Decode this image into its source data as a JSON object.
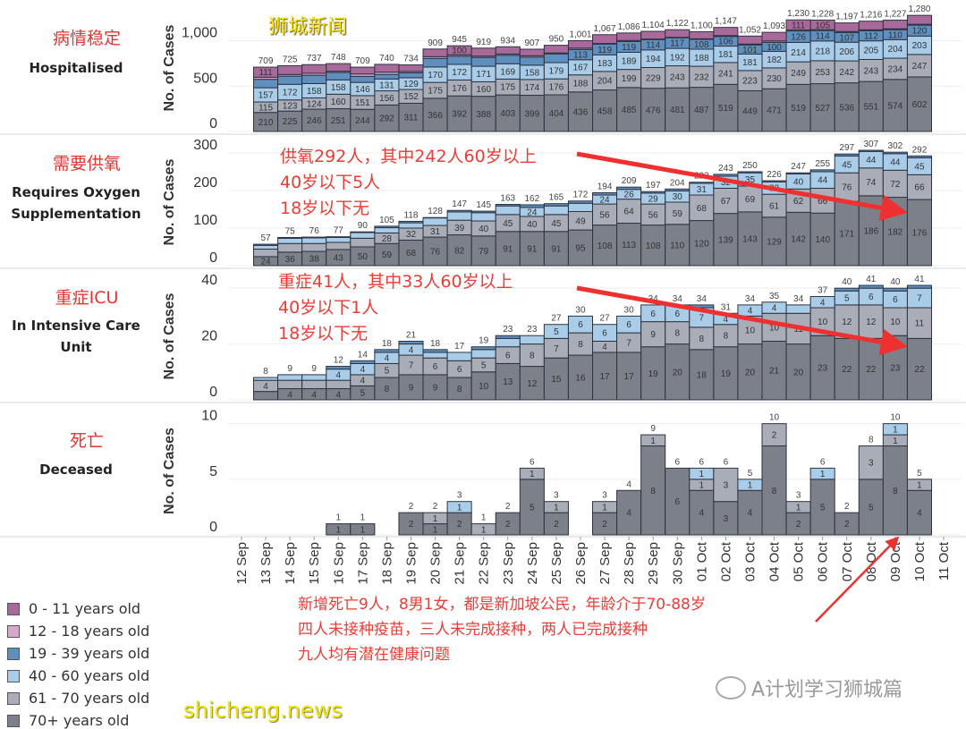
{
  "panels": [
    {
      "title_cn": "病情稳定",
      "title_en": "Hospitalised"
    },
    {
      "title_cn": "需要供氧",
      "title_en": "Requires Oxygen Supplementation"
    },
    {
      "title_cn": "重症ICU",
      "title_en": "In Intensive Care Unit"
    },
    {
      "title_cn": "死亡",
      "title_en": "Deceased"
    }
  ],
  "annotations": {
    "oxygen": [
      "供氧292人，其中242人60岁以上",
      "40岁以下5人",
      "18岁以下无"
    ],
    "icu": [
      "重症41人，其中33人60岁以上",
      "40岁以下1人",
      "18岁以下无"
    ],
    "deceased": [
      "新增死亡9人，8男1女，都是新加坡公民，年龄介于70-88岁",
      "四人未接种疫苗，三人未完成接种，两人已完成接种",
      "九人均有潜在健康问题"
    ]
  },
  "legend": [
    {
      "label": "0 - 11 years old",
      "color": "#a86a9a"
    },
    {
      "label": "12 - 18 years old",
      "color": "#d9a7cc"
    },
    {
      "label": "19 - 39 years old",
      "color": "#5f8fbf"
    },
    {
      "label": "40 - 60 years old",
      "color": "#a9cde9"
    },
    {
      "label": "61 - 70 years old",
      "color": "#a9adb8"
    },
    {
      "label": "70+ years old",
      "color": "#7b8089"
    }
  ],
  "watermarks": {
    "top": "狮城新闻",
    "bottom": "shicheng.news",
    "wechat": "A计划学习狮城篇"
  },
  "chart_data": [
    {
      "type": "bar",
      "stacked": true,
      "ylabel": "No. of Cases",
      "yticks": [
        0,
        500,
        1000
      ],
      "ylim": [
        0,
        1400
      ],
      "categories": [
        "12 Sep",
        "13 Sep",
        "14 Sep",
        "15 Sep",
        "16 Sep",
        "17 Sep",
        "18 Sep",
        "19 Sep",
        "20 Sep",
        "21 Sep",
        "22 Sep",
        "23 Sep",
        "24 Sep",
        "25 Sep",
        "26 Sep",
        "27 Sep",
        "28 Sep",
        "29 Sep",
        "30 Sep",
        "01 Oct",
        "02 Oct",
        "03 Oct",
        "04 Oct",
        "05 Oct",
        "06 Oct",
        "07 Oct",
        "08 Oct",
        "09 Oct",
        "10 Oct",
        "11 Oct"
      ],
      "totals": [
        null,
        709,
        725,
        737,
        748,
        709,
        740,
        734,
        909,
        945,
        919,
        934,
        907,
        950,
        1001,
        1067,
        1086,
        1104,
        1122,
        1100,
        1147,
        1052,
        1093,
        1230,
        1228,
        1197,
        1216,
        1227,
        1280,
        null
      ],
      "series": [
        {
          "name": "70+ years old",
          "values": [
            null,
            210,
            225,
            246,
            251,
            244,
            292,
            311,
            366,
            392,
            388,
            403,
            399,
            404,
            436,
            458,
            485,
            476,
            481,
            487,
            519,
            449,
            471,
            519,
            527,
            536,
            551,
            574,
            602,
            null
          ]
        },
        {
          "name": "61 - 70 years old",
          "values": [
            null,
            115,
            123,
            124,
            160,
            151,
            156,
            152,
            175,
            176,
            160,
            175,
            174,
            176,
            188,
            204,
            199,
            229,
            243,
            232,
            241,
            223,
            230,
            249,
            253,
            242,
            243,
            234,
            247,
            null
          ]
        },
        {
          "name": "40 - 60 years old",
          "values": [
            null,
            157,
            172,
            158,
            158,
            146,
            131,
            129,
            170,
            172,
            171,
            169,
            158,
            179,
            167,
            183,
            189,
            194,
            192,
            188,
            181,
            181,
            182,
            214,
            218,
            206,
            205,
            204,
            203,
            null
          ]
        },
        {
          "name": "19 - 39 years old",
          "values": [
            null,
            93,
            90,
            92,
            82,
            67,
            50,
            55,
            95,
            89,
            98,
            93,
            89,
            97,
            113,
            119,
            119,
            114,
            117,
            108,
            106,
            101,
            100,
            126,
            114,
            107,
            112,
            110,
            120,
            null
          ]
        },
        {
          "name": "12 - 18 years old",
          "values": [
            null,
            23,
            18,
            22,
            13,
            26,
            25,
            15,
            19,
            16,
            14,
            14,
            15,
            9,
            15,
            6,
            11,
            6,
            5,
            7,
            10,
            10,
            15,
            11,
            11,
            11,
            10,
            10,
            10,
            null
          ]
        },
        {
          "name": "0 - 11 years old",
          "values": [
            null,
            111,
            97,
            95,
            84,
            75,
            86,
            72,
            84,
            100,
            88,
            80,
            72,
            85,
            82,
            97,
            83,
            85,
            84,
            78,
            90,
            88,
            95,
            111,
            105,
            95,
            95,
            95,
            98,
            null
          ]
        }
      ]
    },
    {
      "type": "bar",
      "stacked": true,
      "ylabel": "No. of Cases",
      "yticks": [
        0,
        100,
        200,
        300
      ],
      "ylim": [
        0,
        338
      ],
      "categories": [
        "12 Sep",
        "13 Sep",
        "14 Sep",
        "15 Sep",
        "16 Sep",
        "17 Sep",
        "18 Sep",
        "19 Sep",
        "20 Sep",
        "21 Sep",
        "22 Sep",
        "23 Sep",
        "24 Sep",
        "25 Sep",
        "26 Sep",
        "27 Sep",
        "28 Sep",
        "29 Sep",
        "30 Sep",
        "01 Oct",
        "02 Oct",
        "03 Oct",
        "04 Oct",
        "05 Oct",
        "06 Oct",
        "07 Oct",
        "08 Oct",
        "09 Oct",
        "10 Oct",
        "11 Oct"
      ],
      "totals": [
        null,
        57,
        75,
        76,
        77,
        90,
        105,
        118,
        128,
        147,
        145,
        163,
        162,
        165,
        172,
        194,
        209,
        197,
        204,
        222,
        243,
        250,
        226,
        247,
        255,
        297,
        307,
        302,
        292,
        null
      ],
      "series": [
        {
          "name": "70+ years old",
          "values": [
            null,
            24,
            36,
            38,
            43,
            50,
            59,
            68,
            76,
            82,
            79,
            91,
            91,
            91,
            95,
            108,
            113,
            108,
            110,
            120,
            139,
            143,
            129,
            142,
            140,
            171,
            186,
            182,
            176,
            null
          ]
        },
        {
          "name": "61 - 70 years old",
          "values": [
            null,
            20,
            23,
            21,
            19,
            23,
            28,
            32,
            31,
            39,
            40,
            45,
            40,
            45,
            49,
            56,
            64,
            56,
            59,
            68,
            67,
            69,
            61,
            62,
            66,
            76,
            74,
            72,
            66,
            null
          ]
        },
        {
          "name": "40 - 60 years old",
          "values": [
            null,
            10,
            14,
            15,
            13,
            15,
            14,
            14,
            20,
            22,
            22,
            23,
            24,
            23,
            22,
            24,
            26,
            29,
            30,
            31,
            32,
            35,
            33,
            40,
            44,
            45,
            44,
            44,
            45,
            null
          ]
        },
        {
          "name": "19 - 39 years old",
          "values": [
            null,
            3,
            2,
            2,
            2,
            2,
            4,
            4,
            1,
            4,
            4,
            4,
            7,
            6,
            6,
            6,
            6,
            4,
            5,
            3,
            5,
            3,
            3,
            3,
            5,
            5,
            3,
            4,
            5,
            null
          ]
        }
      ]
    },
    {
      "type": "bar",
      "stacked": true,
      "ylabel": "No. of Cases",
      "yticks": [
        0,
        20,
        40
      ],
      "ylim": [
        0,
        45.5
      ],
      "categories": [
        "12 Sep",
        "13 Sep",
        "14 Sep",
        "15 Sep",
        "16 Sep",
        "17 Sep",
        "18 Sep",
        "19 Sep",
        "20 Sep",
        "21 Sep",
        "22 Sep",
        "23 Sep",
        "24 Sep",
        "25 Sep",
        "26 Sep",
        "27 Sep",
        "28 Sep",
        "29 Sep",
        "30 Sep",
        "01 Oct",
        "02 Oct",
        "03 Oct",
        "04 Oct",
        "05 Oct",
        "06 Oct",
        "07 Oct",
        "08 Oct",
        "09 Oct",
        "10 Oct",
        "11 Oct"
      ],
      "totals": [
        null,
        8,
        9,
        9,
        12,
        14,
        18,
        21,
        18,
        17,
        19,
        23,
        23,
        27,
        30,
        27,
        30,
        34,
        34,
        34,
        31,
        34,
        35,
        34,
        37,
        40,
        41,
        40,
        41,
        null
      ],
      "series": [
        {
          "name": "70+ years old",
          "values": [
            null,
            3,
            4,
            4,
            4,
            5,
            8,
            9,
            9,
            8,
            10,
            13,
            12,
            15,
            16,
            17,
            17,
            19,
            20,
            18,
            19,
            20,
            21,
            20,
            23,
            22,
            22,
            23,
            22,
            null
          ]
        },
        {
          "name": "61 - 70 years old",
          "values": [
            null,
            4,
            3,
            3,
            3,
            4,
            5,
            7,
            6,
            6,
            5,
            6,
            8,
            7,
            8,
            4,
            7,
            9,
            8,
            8,
            8,
            10,
            10,
            11,
            10,
            12,
            12,
            10,
            11,
            null
          ]
        },
        {
          "name": "40 - 60 years old",
          "values": [
            null,
            1,
            2,
            2,
            4,
            4,
            4,
            4,
            2,
            3,
            3,
            3,
            3,
            5,
            6,
            6,
            6,
            6,
            6,
            7,
            4,
            4,
            4,
            3,
            4,
            5,
            6,
            6,
            7,
            null
          ]
        },
        {
          "name": "19 - 39 years old",
          "values": [
            null,
            0,
            0,
            0,
            1,
            1,
            1,
            1,
            1,
            0,
            1,
            1,
            0,
            0,
            0,
            0,
            0,
            0,
            0,
            1,
            0,
            0,
            0,
            0,
            0,
            1,
            1,
            1,
            1,
            null
          ]
        }
      ]
    },
    {
      "type": "bar",
      "stacked": true,
      "ylabel": "No. of Cases",
      "yticks": [
        0,
        5,
        10
      ],
      "ylim": [
        0,
        11.5
      ],
      "categories": [
        "12 Sep",
        "13 Sep",
        "14 Sep",
        "15 Sep",
        "16 Sep",
        "17 Sep",
        "18 Sep",
        "19 Sep",
        "20 Sep",
        "21 Sep",
        "22 Sep",
        "23 Sep",
        "24 Sep",
        "25 Sep",
        "26 Sep",
        "27 Sep",
        "28 Sep",
        "29 Sep",
        "30 Sep",
        "01 Oct",
        "02 Oct",
        "03 Oct",
        "04 Oct",
        "05 Oct",
        "06 Oct",
        "07 Oct",
        "08 Oct",
        "09 Oct",
        "10 Oct",
        "11 Oct"
      ],
      "totals": [
        null,
        null,
        null,
        null,
        1,
        1,
        null,
        2,
        2,
        3,
        1,
        2,
        6,
        3,
        null,
        3,
        4,
        9,
        6,
        6,
        6,
        5,
        10,
        3,
        6,
        2,
        8,
        10,
        5,
        null
      ],
      "series": [
        {
          "name": "70+ years old",
          "values": [
            null,
            0,
            0,
            0,
            1,
            1,
            0,
            2,
            1,
            2,
            0,
            2,
            5,
            2,
            0,
            2,
            4,
            8,
            6,
            4,
            3,
            4,
            8,
            2,
            5,
            2,
            5,
            8,
            4,
            null
          ]
        },
        {
          "name": "61 - 70 years old",
          "values": [
            null,
            0,
            0,
            0,
            0,
            0,
            0,
            0,
            1,
            0,
            1,
            0,
            1,
            1,
            0,
            1,
            0,
            1,
            0,
            1,
            3,
            0,
            2,
            1,
            0,
            0,
            3,
            1,
            1,
            null
          ]
        },
        {
          "name": "40 - 60 years old",
          "values": [
            null,
            0,
            0,
            0,
            0,
            0,
            0,
            0,
            0,
            1,
            0,
            0,
            0,
            0,
            0,
            0,
            0,
            0,
            0,
            1,
            0,
            1,
            0,
            0,
            1,
            0,
            0,
            1,
            0,
            null
          ]
        }
      ]
    }
  ]
}
